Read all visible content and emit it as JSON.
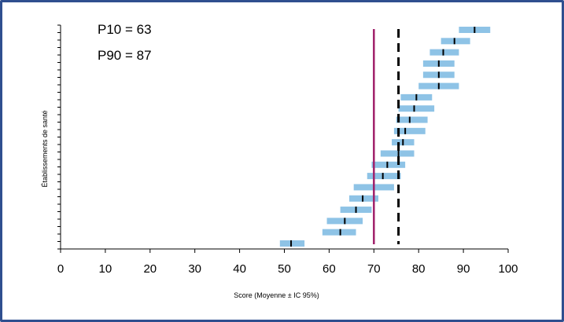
{
  "chart_data": {
    "type": "interval",
    "xlabel": "Score (Moyenne ± IC 95%)",
    "ylabel": "Établissements de santé",
    "xlim": [
      0,
      100
    ],
    "xticks": [
      0,
      10,
      20,
      30,
      40,
      50,
      60,
      70,
      80,
      90,
      100
    ],
    "grid": false,
    "annotations": [
      "P10 = 63",
      "P90 = 87"
    ],
    "reference_lines": [
      {
        "x": 70,
        "style": "solid",
        "color": "#a0206a"
      },
      {
        "x": 75.5,
        "style": "dashed",
        "color": "#000000"
      }
    ],
    "series": [
      {
        "color": "#8ec3e6",
        "points": [
          {
            "mean": 92.5,
            "low": 89,
            "high": 96
          },
          {
            "mean": 88,
            "low": 85,
            "high": 91.5
          },
          {
            "mean": 85.5,
            "low": 82.5,
            "high": 89
          },
          {
            "mean": 84.5,
            "low": 81,
            "high": 88
          },
          {
            "mean": 84.5,
            "low": 81,
            "high": 88
          },
          {
            "mean": 84.5,
            "low": 80,
            "high": 89
          },
          {
            "mean": 79.5,
            "low": 76,
            "high": 83
          },
          {
            "mean": 79,
            "low": 75.5,
            "high": 83.5
          },
          {
            "mean": 78,
            "low": 75,
            "high": 82
          },
          {
            "mean": 77,
            "low": 74.5,
            "high": 81.5
          },
          {
            "mean": 76.5,
            "low": 74,
            "high": 79
          },
          {
            "mean": 75.5,
            "low": 71.5,
            "high": 79
          },
          {
            "mean": 73,
            "low": 69.5,
            "high": 77
          },
          {
            "mean": 72,
            "low": 68.5,
            "high": 76
          },
          {
            "mean": 70,
            "low": 65.5,
            "high": 74.5
          },
          {
            "mean": 67.5,
            "low": 64.5,
            "high": 71
          },
          {
            "mean": 66,
            "low": 62.5,
            "high": 69.5
          },
          {
            "mean": 63.5,
            "low": 59.5,
            "high": 67.5
          },
          {
            "mean": 62.5,
            "low": 58.5,
            "high": 66
          },
          {
            "mean": 51.5,
            "low": 49,
            "high": 54.5
          }
        ]
      }
    ]
  }
}
